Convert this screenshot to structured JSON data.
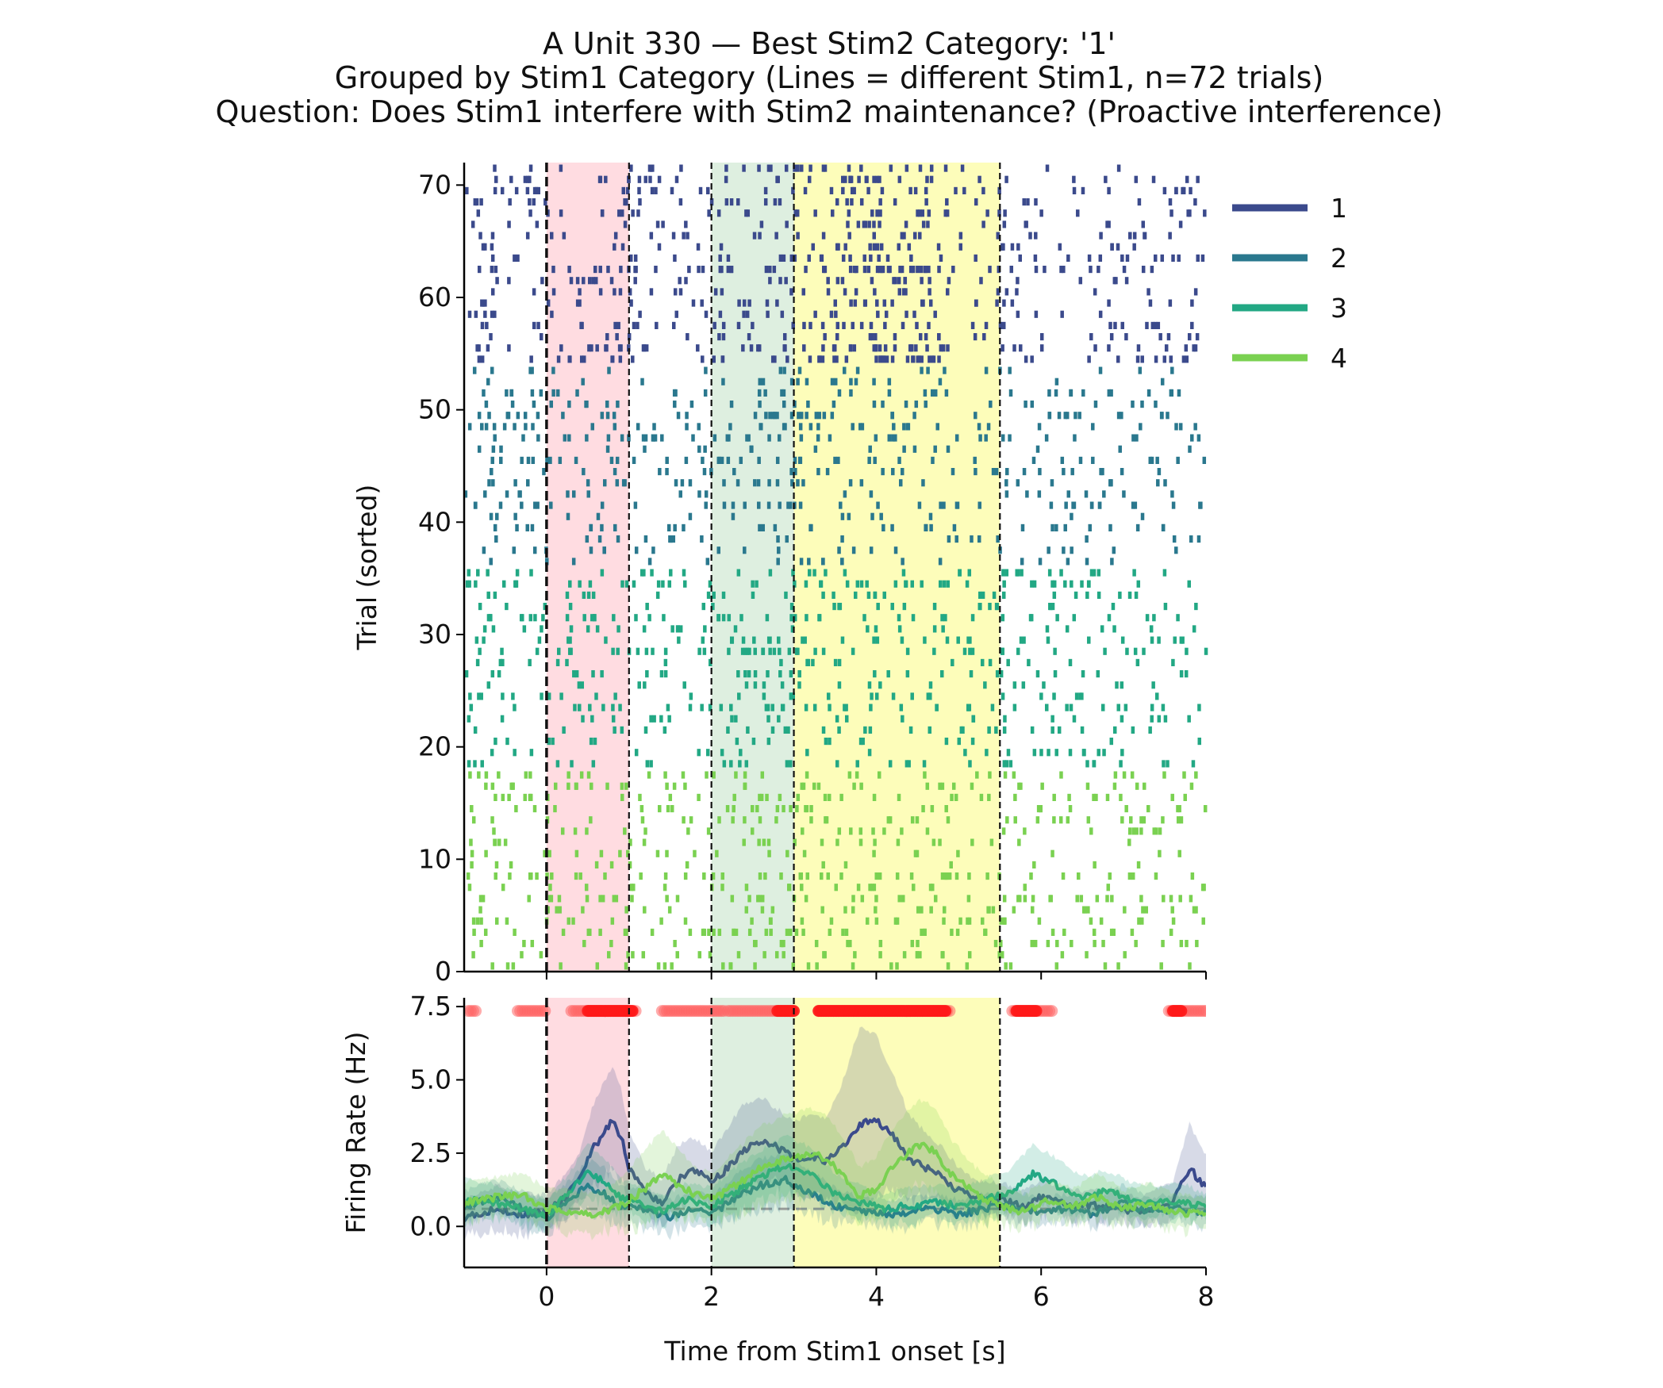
{
  "chart_data": {
    "type": "line",
    "title_lines": [
      "A Unit 330 — Best Stim2 Category: '1'",
      "Grouped by Stim1 Category (Lines = different Stim1, n=72 trials)",
      "Question: Does Stim1 interfere with Stim2 maintenance? (Proactive interference)"
    ],
    "xlabel": "Time from Stim1 onset [s]",
    "xlim": [
      -1,
      8
    ],
    "xticks": [
      0,
      2,
      4,
      6,
      8
    ],
    "raster": {
      "ylabel": "Trial (sorted)",
      "ylim": [
        0,
        72
      ],
      "yticks": [
        0,
        10,
        20,
        30,
        40,
        50,
        60,
        70
      ],
      "trial_groups": [
        {
          "category": "1",
          "trials": [
            54,
            72
          ]
        },
        {
          "category": "2",
          "trials": [
            36,
            54
          ]
        },
        {
          "category": "3",
          "trials": [
            18,
            36
          ]
        },
        {
          "category": "4",
          "trials": [
            0,
            18
          ]
        }
      ]
    },
    "psth": {
      "ylabel": "Firing Rate (Hz)",
      "ylim": [
        -1.4,
        7.8
      ],
      "yticks": [
        "0.0",
        "2.5",
        "5.0",
        "7.5"
      ],
      "baseline": 0.6,
      "significance_y": 7.35,
      "significance_intervals": [
        [
          -0.95,
          -0.85
        ],
        [
          -0.35,
          0.0
        ],
        [
          0.3,
          1.1
        ],
        [
          1.4,
          2.15
        ],
        [
          2.2,
          3.0
        ],
        [
          3.3,
          4.9
        ],
        [
          5.65,
          6.15
        ],
        [
          7.55,
          8.0
        ]
      ],
      "strong_significance_intervals": [
        [
          0.5,
          1.05
        ],
        [
          2.8,
          3.0
        ],
        [
          3.3,
          4.85
        ],
        [
          5.7,
          5.95
        ],
        [
          7.6,
          7.7
        ]
      ],
      "series": [
        {
          "name": "1",
          "color": "#3b4a8c",
          "x": [
            -1.0,
            -0.6,
            -0.3,
            0.0,
            0.2,
            0.4,
            0.55,
            0.7,
            0.8,
            0.9,
            1.0,
            1.2,
            1.4,
            1.6,
            1.8,
            2.0,
            2.2,
            2.4,
            2.6,
            2.8,
            3.0,
            3.2,
            3.4,
            3.6,
            3.8,
            4.0,
            4.2,
            4.4,
            4.6,
            4.8,
            5.0,
            5.2,
            5.5,
            5.8,
            6.0,
            6.4,
            6.8,
            7.2,
            7.6,
            7.8,
            8.0
          ],
          "y": [
            0.3,
            0.6,
            0.4,
            0.5,
            0.9,
            1.6,
            2.6,
            3.2,
            3.6,
            3.1,
            2.0,
            1.1,
            0.8,
            1.6,
            1.9,
            1.5,
            2.0,
            2.6,
            2.9,
            2.7,
            2.3,
            2.4,
            2.2,
            2.7,
            3.5,
            3.6,
            3.1,
            2.3,
            2.0,
            1.7,
            1.2,
            1.0,
            0.9,
            0.7,
            1.0,
            0.7,
            0.7,
            0.5,
            0.9,
            2.0,
            1.3
          ],
          "band": [
            0.9,
            1.4,
            1.1,
            1.1,
            1.7,
            2.5,
            4.0,
            5.0,
            5.4,
            4.8,
            3.2,
            2.0,
            1.6,
            2.8,
            3.0,
            2.5,
            3.4,
            4.2,
            4.4,
            4.0,
            3.6,
            3.8,
            3.7,
            5.0,
            6.8,
            6.5,
            5.2,
            3.8,
            3.2,
            2.7,
            2.0,
            1.6,
            1.5,
            1.2,
            1.6,
            1.2,
            1.3,
            1.0,
            1.5,
            3.5,
            2.4
          ]
        },
        {
          "name": "2",
          "color": "#2a788e",
          "x": [
            -1.0,
            -0.6,
            -0.3,
            0.0,
            0.3,
            0.5,
            0.7,
            0.9,
            1.2,
            1.5,
            1.8,
            2.0,
            2.3,
            2.6,
            2.9,
            3.2,
            3.5,
            3.8,
            4.1,
            4.4,
            4.7,
            5.0,
            5.3,
            5.6,
            6.0,
            6.3,
            6.6,
            7.0,
            7.3,
            7.6,
            8.0
          ],
          "y": [
            0.7,
            1.0,
            0.6,
            0.3,
            0.9,
            1.4,
            1.1,
            0.7,
            0.6,
            0.3,
            0.6,
            0.4,
            1.0,
            1.4,
            1.6,
            1.1,
            0.7,
            0.5,
            0.4,
            0.5,
            0.6,
            0.4,
            0.6,
            0.7,
            0.5,
            0.6,
            0.4,
            0.8,
            0.5,
            0.6,
            0.5
          ],
          "band": [
            1.2,
            1.6,
            1.2,
            0.9,
            1.6,
            2.3,
            2.0,
            1.4,
            1.3,
            0.9,
            1.2,
            1.0,
            1.8,
            2.3,
            2.5,
            1.9,
            1.3,
            1.0,
            0.9,
            1.0,
            1.1,
            0.9,
            1.1,
            1.2,
            1.0,
            1.1,
            0.9,
            1.4,
            1.0,
            1.1,
            1.0
          ]
        },
        {
          "name": "3",
          "color": "#22a884",
          "x": [
            -1.0,
            -0.6,
            -0.3,
            0.0,
            0.3,
            0.5,
            0.7,
            0.9,
            1.1,
            1.4,
            1.7,
            2.0,
            2.3,
            2.6,
            2.9,
            3.2,
            3.5,
            3.8,
            4.1,
            4.4,
            4.7,
            5.0,
            5.3,
            5.6,
            5.9,
            6.2,
            6.5,
            6.8,
            7.1,
            7.4,
            7.7,
            8.0
          ],
          "y": [
            0.9,
            0.8,
            0.6,
            0.4,
            1.2,
            1.9,
            1.5,
            1.0,
            0.8,
            0.5,
            0.9,
            0.7,
            1.2,
            1.7,
            2.1,
            1.8,
            1.1,
            0.8,
            0.6,
            0.7,
            0.8,
            0.7,
            0.9,
            1.1,
            1.8,
            1.4,
            1.0,
            1.2,
            0.9,
            0.8,
            0.9,
            0.6
          ],
          "band": [
            1.6,
            1.4,
            1.1,
            0.9,
            1.9,
            2.8,
            2.3,
            1.6,
            1.4,
            1.0,
            1.5,
            1.3,
            2.0,
            2.6,
            3.1,
            2.7,
            1.8,
            1.4,
            1.1,
            1.3,
            1.4,
            1.3,
            1.6,
            1.9,
            2.8,
            2.3,
            1.7,
            1.9,
            1.5,
            1.4,
            1.5,
            1.1
          ]
        },
        {
          "name": "4",
          "color": "#7ad151",
          "x": [
            -1.0,
            -0.6,
            -0.3,
            0.0,
            0.3,
            0.6,
            0.9,
            1.2,
            1.4,
            1.6,
            1.8,
            2.0,
            2.3,
            2.6,
            2.9,
            3.2,
            3.4,
            3.6,
            3.8,
            4.0,
            4.2,
            4.5,
            4.7,
            4.9,
            5.2,
            5.5,
            5.8,
            6.1,
            6.4,
            6.7,
            7.0,
            7.3,
            7.6,
            8.0
          ],
          "y": [
            0.8,
            1.0,
            1.1,
            0.6,
            0.5,
            0.4,
            0.7,
            1.3,
            1.8,
            1.4,
            1.1,
            0.9,
            1.4,
            2.0,
            2.3,
            2.5,
            2.3,
            1.7,
            1.0,
            1.3,
            2.0,
            2.8,
            2.6,
            1.8,
            1.1,
            0.7,
            0.5,
            0.9,
            0.7,
            1.0,
            0.6,
            0.8,
            0.5,
            0.4
          ],
          "band": [
            1.5,
            1.7,
            1.8,
            1.3,
            1.2,
            1.1,
            1.6,
            2.6,
            3.3,
            2.6,
            2.0,
            1.8,
            2.6,
            3.4,
            3.8,
            4.0,
            3.8,
            3.0,
            2.0,
            2.4,
            3.3,
            4.3,
            4.1,
            3.0,
            2.0,
            1.4,
            1.1,
            1.6,
            1.3,
            1.8,
            1.2,
            1.5,
            1.1,
            1.0
          ]
        }
      ]
    },
    "epochs": [
      {
        "start": 0.0,
        "end": 1.0,
        "color": "#ffd6dc"
      },
      {
        "start": 2.0,
        "end": 3.0,
        "color": "#d8ecda"
      },
      {
        "start": 3.0,
        "end": 5.5,
        "color": "#fdfdae"
      }
    ],
    "epoch_lines": [
      0,
      1,
      2,
      3,
      5.5
    ],
    "onset_line": 0,
    "legend": {
      "placement": "upper right outside",
      "entries": [
        "1",
        "2",
        "3",
        "4"
      ]
    }
  }
}
